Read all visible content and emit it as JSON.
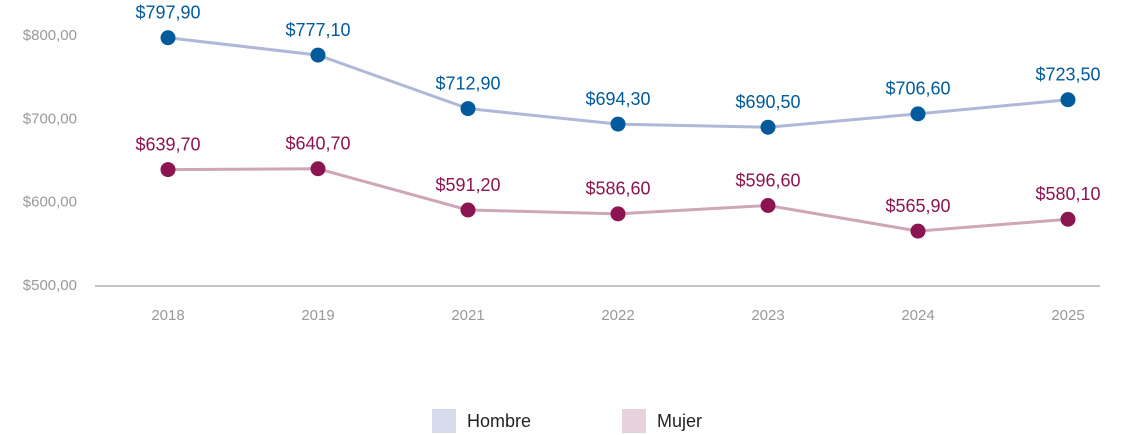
{
  "chart_data": {
    "type": "line",
    "categories": [
      "2018",
      "2019",
      "2021",
      "2022",
      "2023",
      "2024",
      "2025"
    ],
    "series": [
      {
        "name": "Hombre",
        "color": "#005a9c",
        "line_color": "#b0b8d8",
        "values": [
          797.9,
          777.1,
          712.9,
          694.3,
          690.5,
          706.6,
          723.5
        ],
        "value_labels": [
          "$797,90",
          "$777,10",
          "$712,90",
          "$694,30",
          "$690,50",
          "$706,60",
          "$723,50"
        ]
      },
      {
        "name": "Mujer",
        "color": "#8c1450",
        "line_color": "#cfa5b8",
        "values": [
          639.7,
          640.7,
          591.2,
          586.6,
          596.6,
          565.9,
          580.1
        ],
        "value_labels": [
          "$639,70",
          "$640,70",
          "$591,20",
          "$586,60",
          "$596,60",
          "$565,90",
          "$580,10"
        ]
      }
    ],
    "ylim": [
      500,
      800
    ],
    "yticks": [
      {
        "value": 500,
        "label": "$500,00"
      },
      {
        "value": 600,
        "label": "$600,00"
      },
      {
        "value": 700,
        "label": "$700,00"
      },
      {
        "value": 800,
        "label": "$800,00"
      }
    ],
    "grid": false,
    "legend": "bottom"
  }
}
